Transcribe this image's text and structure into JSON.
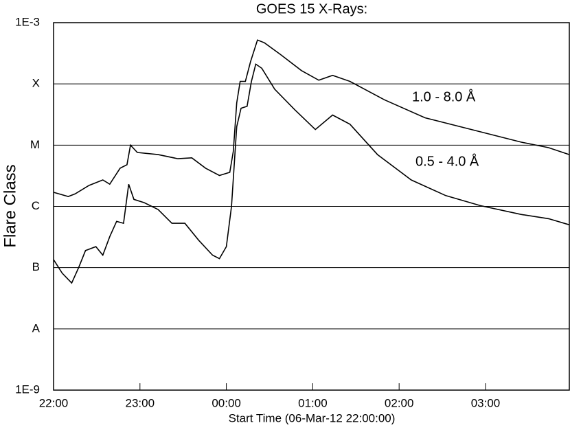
{
  "chart_data": {
    "type": "line",
    "title": "GOES 15 X-Rays:",
    "x_label": "Start Time (06-Mar-12 22:00:00)",
    "y_label": "Flare Class",
    "log_scale_y": true,
    "grid": true,
    "xlim": [
      0,
      5.97
    ],
    "xticks": [
      {
        "value": 0,
        "label": "22:00"
      },
      {
        "value": 1,
        "label": "23:00"
      },
      {
        "value": 2,
        "label": "00:00"
      },
      {
        "value": 3,
        "label": "01:00"
      },
      {
        "value": 4,
        "label": "02:00"
      },
      {
        "value": 5,
        "label": "03:00"
      }
    ],
    "ylim": [
      1e-09,
      0.001
    ],
    "yticks": [
      {
        "value": 1e-09,
        "label": "1E-9"
      },
      {
        "value": 1e-08,
        "label": "A"
      },
      {
        "value": 1e-07,
        "label": "B"
      },
      {
        "value": 1e-06,
        "label": "C"
      },
      {
        "value": 1e-05,
        "label": "M"
      },
      {
        "value": 0.0001,
        "label": "X"
      },
      {
        "value": 0.001,
        "label": "1E-3"
      }
    ],
    "series": [
      {
        "name": "1.0 - 8.0 Å",
        "color": "#000000",
        "x": [
          0,
          0.17,
          0.25,
          0.41,
          0.57,
          0.65,
          0.77,
          0.85,
          0.89,
          0.97,
          1.21,
          1.44,
          1.6,
          1.76,
          1.92,
          2.04,
          2.08,
          2.12,
          2.16,
          2.22,
          2.28,
          2.36,
          2.44,
          2.63,
          2.87,
          3.07,
          3.23,
          3.43,
          3.83,
          4.3,
          4.94,
          5.41,
          5.73,
          5.97
        ],
        "values": [
          1.7e-06,
          1.45e-06,
          1.6e-06,
          2.2e-06,
          2.7e-06,
          2.3e-06,
          4.2e-06,
          4.8e-06,
          1e-05,
          7.6e-06,
          7e-06,
          6e-06,
          6.2e-06,
          4.2e-06,
          3.2e-06,
          3.6e-06,
          7.9e-06,
          4.9e-05,
          0.00011,
          0.00011,
          0.00023,
          0.00052,
          0.00047,
          0.0003,
          0.000165,
          0.000115,
          0.000138,
          0.00011,
          5.5e-05,
          2.8e-05,
          1.65e-05,
          1.12e-05,
          9.1e-06,
          7e-06
        ]
      },
      {
        "name": "0.5 - 4.0 Å",
        "color": "#000000",
        "x": [
          0,
          0.1,
          0.21,
          0.29,
          0.37,
          0.49,
          0.57,
          0.65,
          0.73,
          0.81,
          0.87,
          0.93,
          1.05,
          1.21,
          1.37,
          1.52,
          1.68,
          1.84,
          1.92,
          2.0,
          2.06,
          2.12,
          2.17,
          2.24,
          2.29,
          2.34,
          2.41,
          2.56,
          2.79,
          3.03,
          3.23,
          3.43,
          3.75,
          4.14,
          4.54,
          4.94,
          5.41,
          5.73,
          5.97
        ],
        "values": [
          1.35e-07,
          8.1e-08,
          5.6e-08,
          1e-07,
          1.9e-07,
          2.2e-07,
          1.6e-07,
          3.2e-07,
          5.7e-07,
          5.3e-07,
          2.3e-06,
          1.3e-06,
          1.15e-06,
          8.9e-07,
          5.3e-07,
          5.3e-07,
          2.8e-07,
          1.6e-07,
          1.4e-07,
          2.2e-07,
          1e-06,
          2e-05,
          4e-05,
          4.3e-05,
          0.00011,
          0.00021,
          0.00018,
          8.2e-05,
          3.8e-05,
          1.8e-05,
          3.1e-05,
          2.2e-05,
          7e-06,
          2.7e-06,
          1.5e-06,
          1.03e-06,
          7.4e-07,
          6.3e-07,
          5e-07
        ]
      }
    ]
  }
}
